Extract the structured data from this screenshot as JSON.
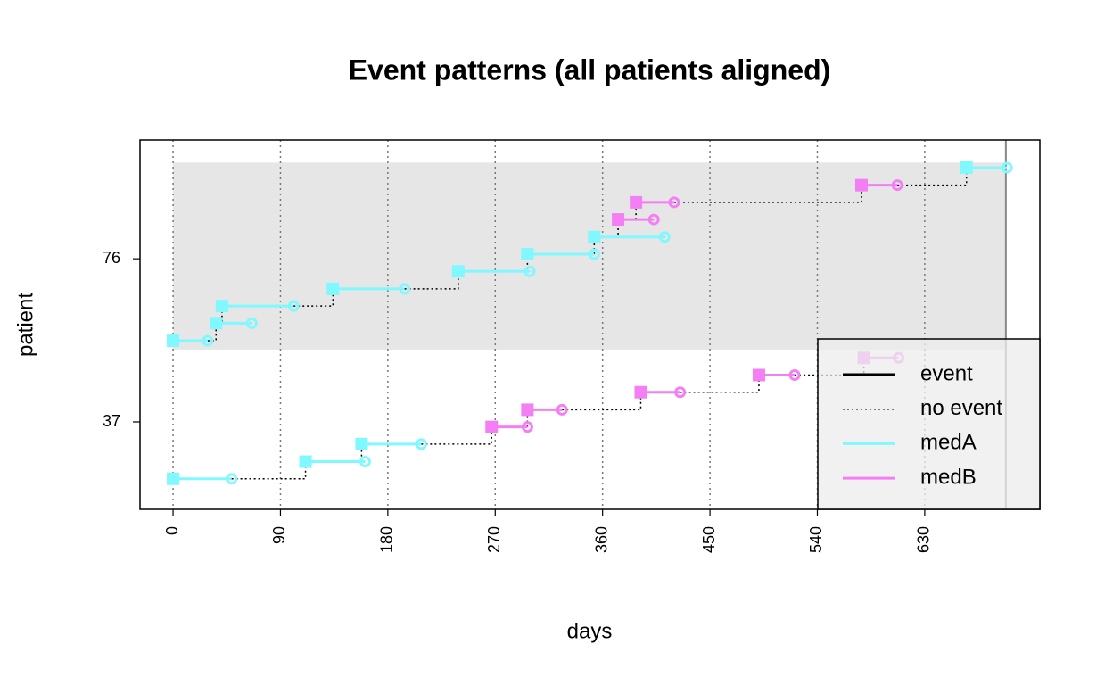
{
  "chart_data": {
    "type": "timeline",
    "title": "Event patterns (all patients aligned)",
    "xlabel": "days",
    "ylabel": "patient",
    "xlim": [
      -27.7,
      726.5
    ],
    "ylim": [
      16.1,
      104.4
    ],
    "xticks": [
      0,
      90,
      180,
      270,
      360,
      450,
      540,
      630
    ],
    "yticks": [
      37,
      76
    ],
    "grid": true,
    "shade": {
      "x": [
        0,
        698
      ],
      "y": [
        54.3,
        99.0
      ],
      "color": "#e6e6e6"
    },
    "vline": 698,
    "line_types": [
      {
        "name": "event",
        "style": "solid"
      },
      {
        "name": "no event",
        "style": "dotted"
      }
    ],
    "series": [
      {
        "name": "medA",
        "color": "#80f8ff"
      },
      {
        "name": "medB",
        "color": "#f47ff4"
      }
    ],
    "legend": "bottomright",
    "patients": [
      [
        {
          "start": 0,
          "end": 49,
          "y": 23.4,
          "med": "medA"
        },
        {
          "start": 111,
          "end": 161,
          "y": 27.5,
          "med": "medA"
        },
        {
          "start": 158,
          "end": 208,
          "y": 31.7,
          "med": "medA"
        },
        {
          "start": 267,
          "end": 297,
          "y": 35.8,
          "med": "medB"
        },
        {
          "start": 297,
          "end": 326,
          "y": 39.9,
          "med": "medB"
        },
        {
          "start": 392,
          "end": 425,
          "y": 44.1,
          "med": "medB"
        },
        {
          "start": 491,
          "end": 521,
          "y": 48.2,
          "med": "medB"
        },
        {
          "start": 579,
          "end": 608,
          "y": 52.3,
          "med": "medB"
        }
      ],
      [
        {
          "start": 0,
          "end": 29,
          "y": 56.4,
          "med": "medA"
        },
        {
          "start": 36,
          "end": 66,
          "y": 60.6,
          "med": "medA"
        },
        {
          "start": 41,
          "end": 101,
          "y": 64.7,
          "med": "medA"
        },
        {
          "start": 134,
          "end": 194,
          "y": 68.8,
          "med": "medA"
        },
        {
          "start": 239,
          "end": 299,
          "y": 73.0,
          "med": "medA"
        },
        {
          "start": 297,
          "end": 353,
          "y": 77.1,
          "med": "medA"
        },
        {
          "start": 353,
          "end": 412,
          "y": 81.2,
          "med": "medA"
        },
        {
          "start": 373,
          "end": 403,
          "y": 85.4,
          "med": "medB"
        },
        {
          "start": 388,
          "end": 420,
          "y": 89.5,
          "med": "medB"
        },
        {
          "start": 577,
          "end": 607,
          "y": 93.6,
          "med": "medB"
        },
        {
          "start": 665,
          "end": 699,
          "y": 97.8,
          "med": "medA"
        }
      ]
    ]
  }
}
